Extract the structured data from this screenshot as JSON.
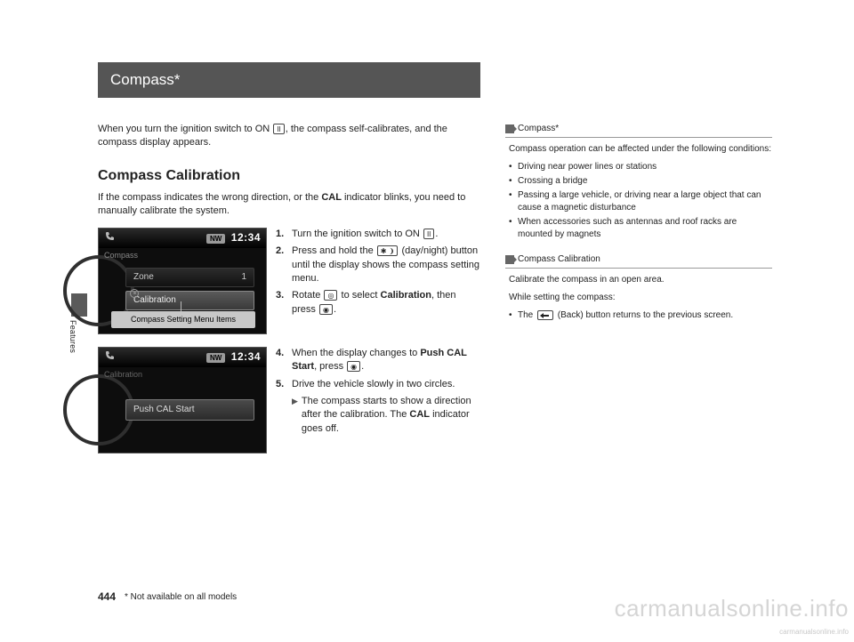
{
  "colors": {
    "title_bg": "#555555",
    "text": "#222222",
    "fig_bg": "#0d0d0d",
    "watermark": "#d5d5d5"
  },
  "side_tab_label": "Features",
  "title": "Compass*",
  "intro_a": "When you turn the ignition switch to ON ",
  "intro_on_glyph": "II",
  "intro_b": ", the compass self-calibrates, and the compass display appears.",
  "section_heading": "Compass Calibration",
  "section_body_a": "If the compass indicates the wrong direction, or the ",
  "section_body_bold": "CAL",
  "section_body_b": " indicator blinks, you need to manually calibrate the system.",
  "fig1": {
    "dir_badge": "NW",
    "clock": "12:34",
    "compass_label": "Compass",
    "zone_label": "Zone",
    "zone_value": "1",
    "calibration_label": "Calibration",
    "caption": "Compass Setting Menu Items"
  },
  "fig2": {
    "dir_badge": "NW",
    "clock": "12:34",
    "calibration_label": "Calibration",
    "push_label": "Push CAL Start"
  },
  "steps1": [
    {
      "n": "1.",
      "a": "Turn the ignition switch to ON ",
      "glyph": "II",
      "b": "."
    },
    {
      "n": "2.",
      "a": "Press and hold the ",
      "glyph": "✱ ❩",
      "b": " (day/night) button until the display shows the compass setting menu."
    },
    {
      "n": "3.",
      "a": "Rotate ",
      "glyph": "◎",
      "b": " to select ",
      "bold": "Calibration",
      "c": ", then press ",
      "glyph2": "◉",
      "d": "."
    }
  ],
  "steps2": [
    {
      "n": "4.",
      "a": "When the display changes to ",
      "bold": "Push CAL Start",
      "b": ", press ",
      "glyph": "◉",
      "c": "."
    },
    {
      "n": "5.",
      "a": "Drive the vehicle slowly in two circles.",
      "sub": {
        "a": "The compass starts to show a direction after the calibration. The ",
        "bold": "CAL",
        "b": " indicator goes off."
      }
    }
  ],
  "side": {
    "h1": "Compass*",
    "p1": "Compass operation can be affected under the following conditions:",
    "list1": [
      "Driving near power lines or stations",
      "Crossing a bridge",
      "Passing a large vehicle, or driving near a large object that can cause a magnetic disturbance",
      "When accessories such as antennas and roof racks are mounted by magnets"
    ],
    "h2": "Compass Calibration",
    "p2": "Calibrate the compass in an open area.",
    "p3": "While setting the compass:",
    "list2_a": "The ",
    "list2_b": " (Back) button returns to the previous screen."
  },
  "page_number": "444",
  "foot_note": "* Not available on all models",
  "watermark": "carmanualsonline.info",
  "watermark_sub": "carmanualsonline.info"
}
